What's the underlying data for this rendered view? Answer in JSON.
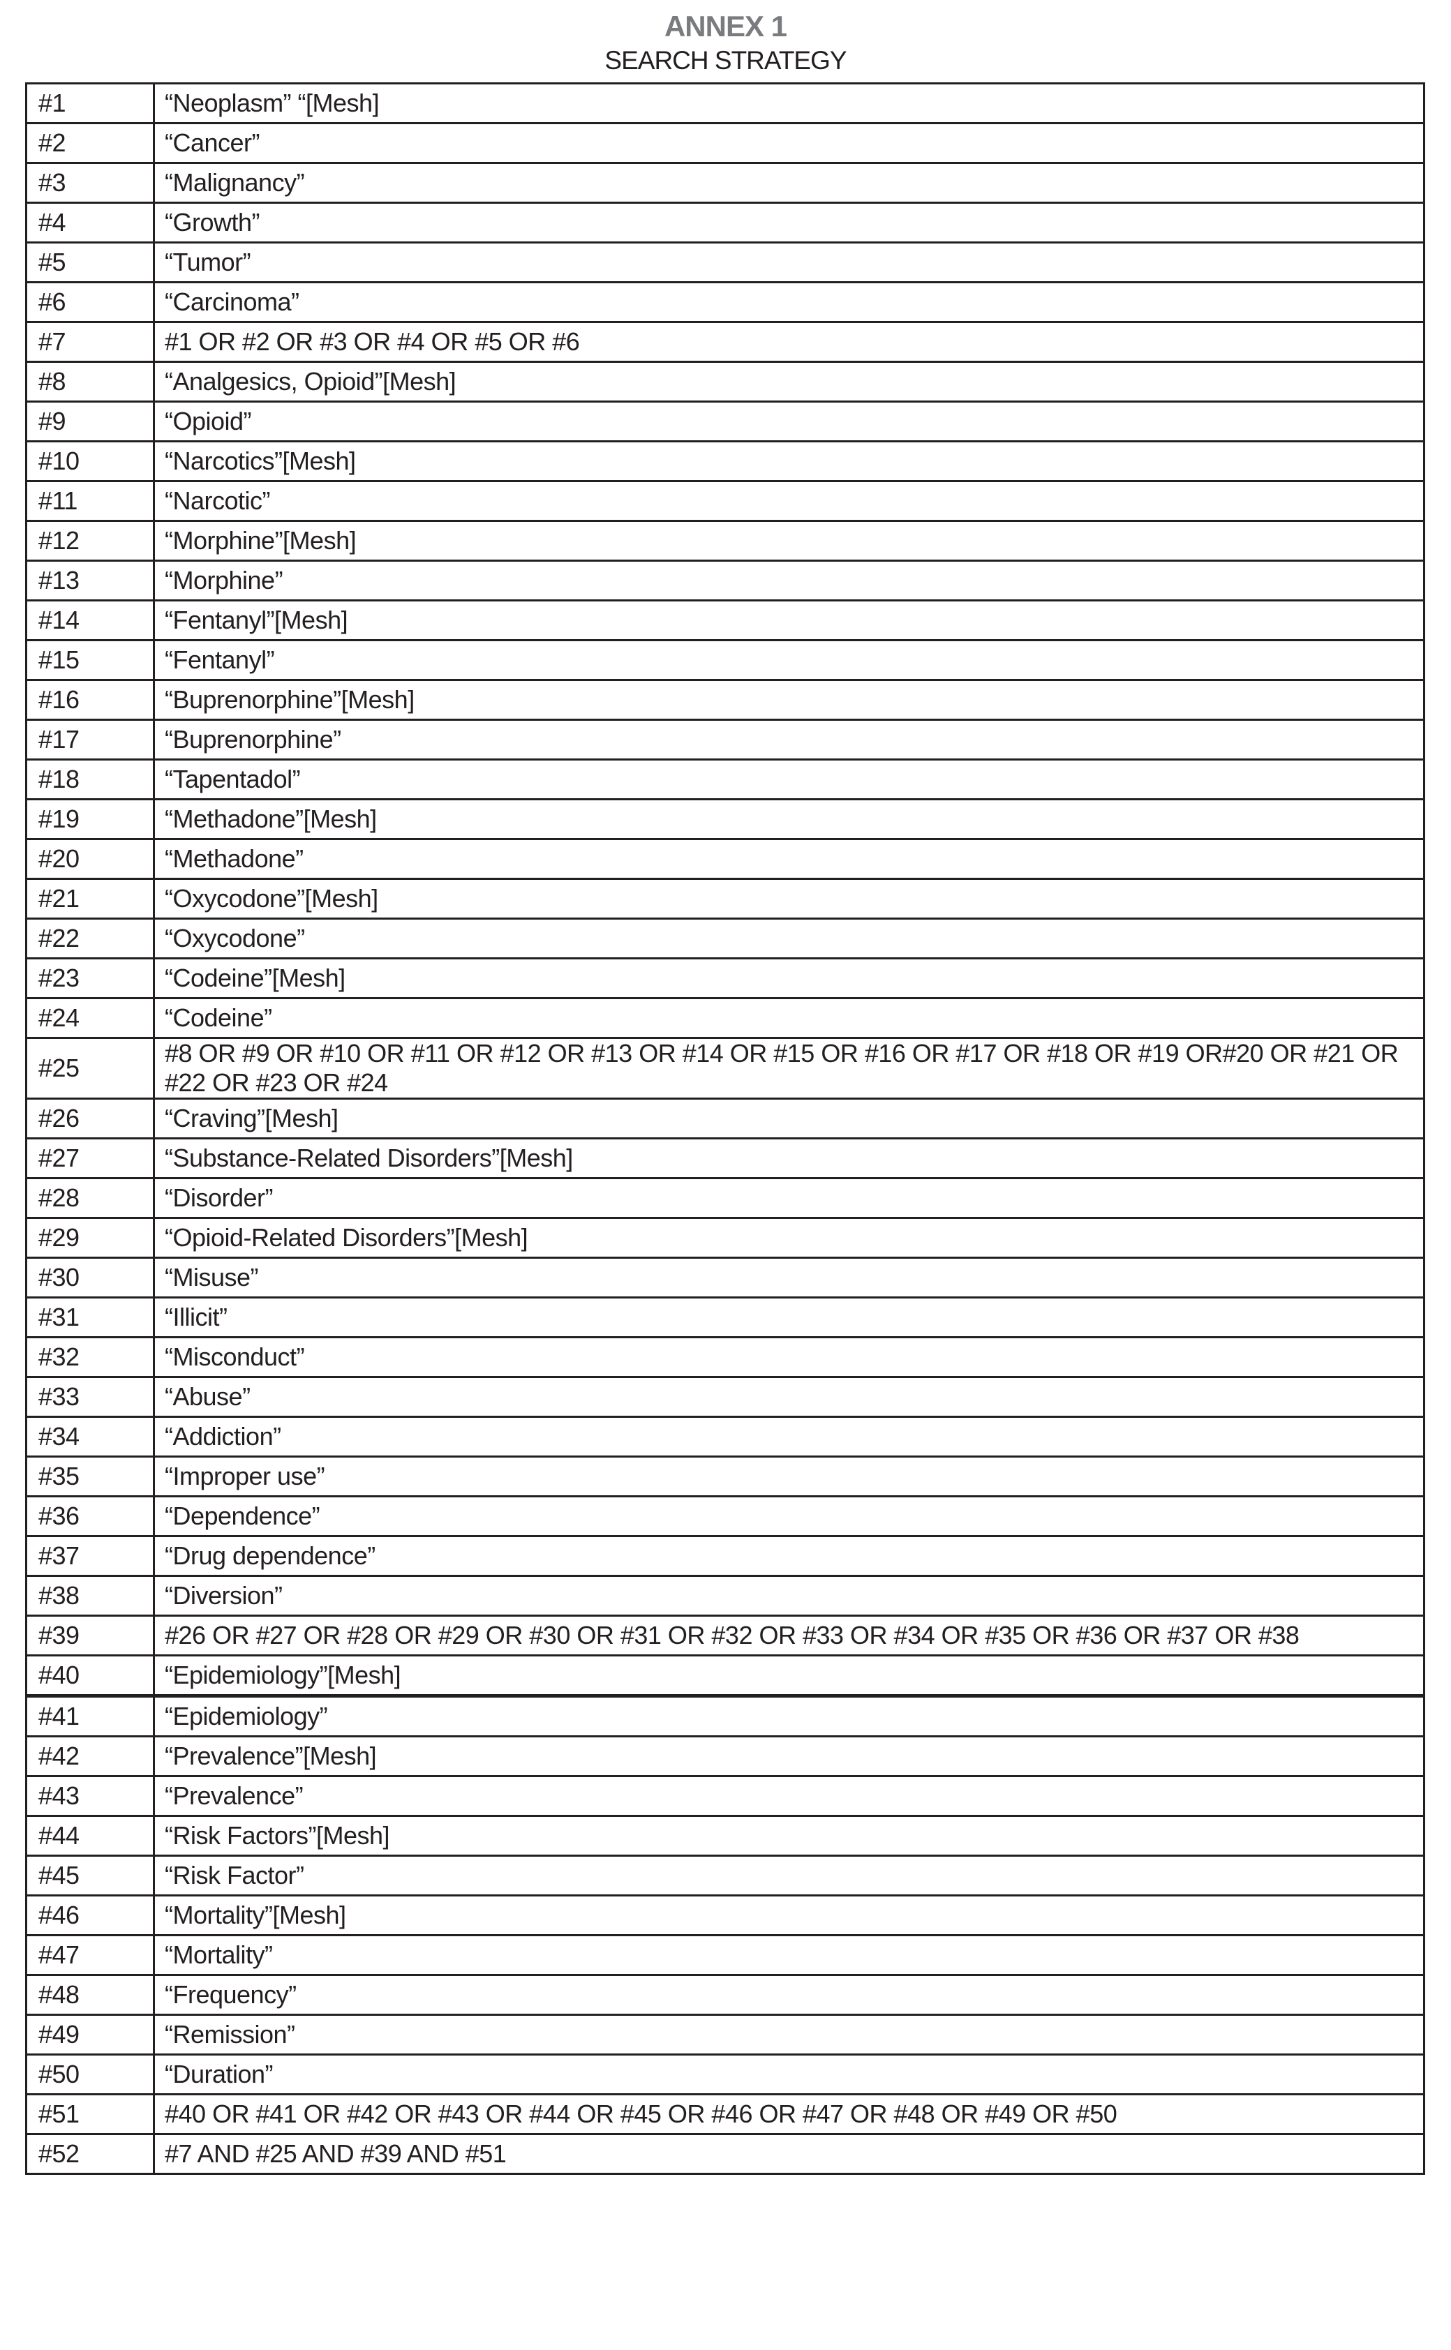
{
  "header": {
    "title": "ANNEX 1",
    "subtitle": "SEARCH STRATEGY"
  },
  "rows": [
    {
      "id": "#1",
      "query": "“Neoplasm” “[Mesh]"
    },
    {
      "id": "#2",
      "query": "“Cancer”"
    },
    {
      "id": "#3",
      "query": "“Malignancy”"
    },
    {
      "id": "#4",
      "query": "“Growth”"
    },
    {
      "id": "#5",
      "query": "“Tumor”"
    },
    {
      "id": "#6",
      "query": "“Carcinoma”"
    },
    {
      "id": "#7",
      "query": "#1 OR #2 OR #3 OR #4 OR #5 OR #6"
    },
    {
      "id": "#8",
      "query": "“Analgesics, Opioid”[Mesh]"
    },
    {
      "id": "#9",
      "query": "“Opioid”"
    },
    {
      "id": "#10",
      "query": "“Narcotics”[Mesh]"
    },
    {
      "id": "#11",
      "query": "“Narcotic”"
    },
    {
      "id": "#12",
      "query": "“Morphine”[Mesh]"
    },
    {
      "id": "#13",
      "query": "“Morphine”"
    },
    {
      "id": "#14",
      "query": "“Fentanyl”[Mesh]"
    },
    {
      "id": "#15",
      "query": "“Fentanyl”"
    },
    {
      "id": "#16",
      "query": "“Buprenorphine”[Mesh]"
    },
    {
      "id": "#17",
      "query": "“Buprenorphine”"
    },
    {
      "id": "#18",
      "query": "“Tapentadol”"
    },
    {
      "id": "#19",
      "query": "“Methadone”[Mesh]"
    },
    {
      "id": "#20",
      "query": "“Methadone”"
    },
    {
      "id": "#21",
      "query": "“Oxycodone”[Mesh]"
    },
    {
      "id": "#22",
      "query": "“Oxycodone”"
    },
    {
      "id": "#23",
      "query": "“Codeine”[Mesh]"
    },
    {
      "id": "#24",
      "query": "“Codeine”"
    },
    {
      "id": "#25",
      "query": "#8 OR #9 OR #10 OR #11 OR #12 OR #13 OR #14 OR #15 OR #16 OR #17 OR #18 OR #19 OR#20 OR #21 OR #22 OR #23 OR #24"
    },
    {
      "id": "#26",
      "query": "“Craving”[Mesh]"
    },
    {
      "id": "#27",
      "query": "“Substance-Related Disorders”[Mesh]"
    },
    {
      "id": "#28",
      "query": "“Disorder”"
    },
    {
      "id": "#29",
      "query": "“Opioid-Related Disorders”[Mesh]"
    },
    {
      "id": "#30",
      "query": "“Misuse”"
    },
    {
      "id": "#31",
      "query": "“Illicit”"
    },
    {
      "id": "#32",
      "query": "“Misconduct”"
    },
    {
      "id": "#33",
      "query": "“Abuse”"
    },
    {
      "id": "#34",
      "query": "“Addiction”"
    },
    {
      "id": "#35",
      "query": "“Improper use”"
    },
    {
      "id": "#36",
      "query": "“Dependence”"
    },
    {
      "id": "#37",
      "query": "“Drug dependence”"
    },
    {
      "id": "#38",
      "query": "“Diversion”"
    },
    {
      "id": "#39",
      "query": "#26 OR #27 OR #28 OR #29 OR #30 OR #31 OR #32 OR #33 OR #34 OR #35 OR #36 OR #37 OR #38"
    },
    {
      "id": "#40",
      "query": "“Epidemiology”[Mesh]"
    },
    {
      "id": "#41",
      "query": "“Epidemiology”"
    },
    {
      "id": "#42",
      "query": "“Prevalence”[Mesh]"
    },
    {
      "id": "#43",
      "query": "“Prevalence”"
    },
    {
      "id": "#44",
      "query": "“Risk Factors”[Mesh]"
    },
    {
      "id": "#45",
      "query": "“Risk Factor”"
    },
    {
      "id": "#46",
      "query": "“Mortality”[Mesh]"
    },
    {
      "id": "#47",
      "query": "“Mortality”"
    },
    {
      "id": "#48",
      "query": "“Frequency”"
    },
    {
      "id": "#49",
      "query": "“Remission”"
    },
    {
      "id": "#50",
      "query": "“Duration”"
    },
    {
      "id": "#51",
      "query": "#40 OR #41 OR #42 OR #43 OR #44 OR #45 OR #46 OR #47 OR #48 OR #49 OR #50"
    },
    {
      "id": "#52",
      "query": "#7 AND #25 AND #39 AND #51"
    }
  ]
}
